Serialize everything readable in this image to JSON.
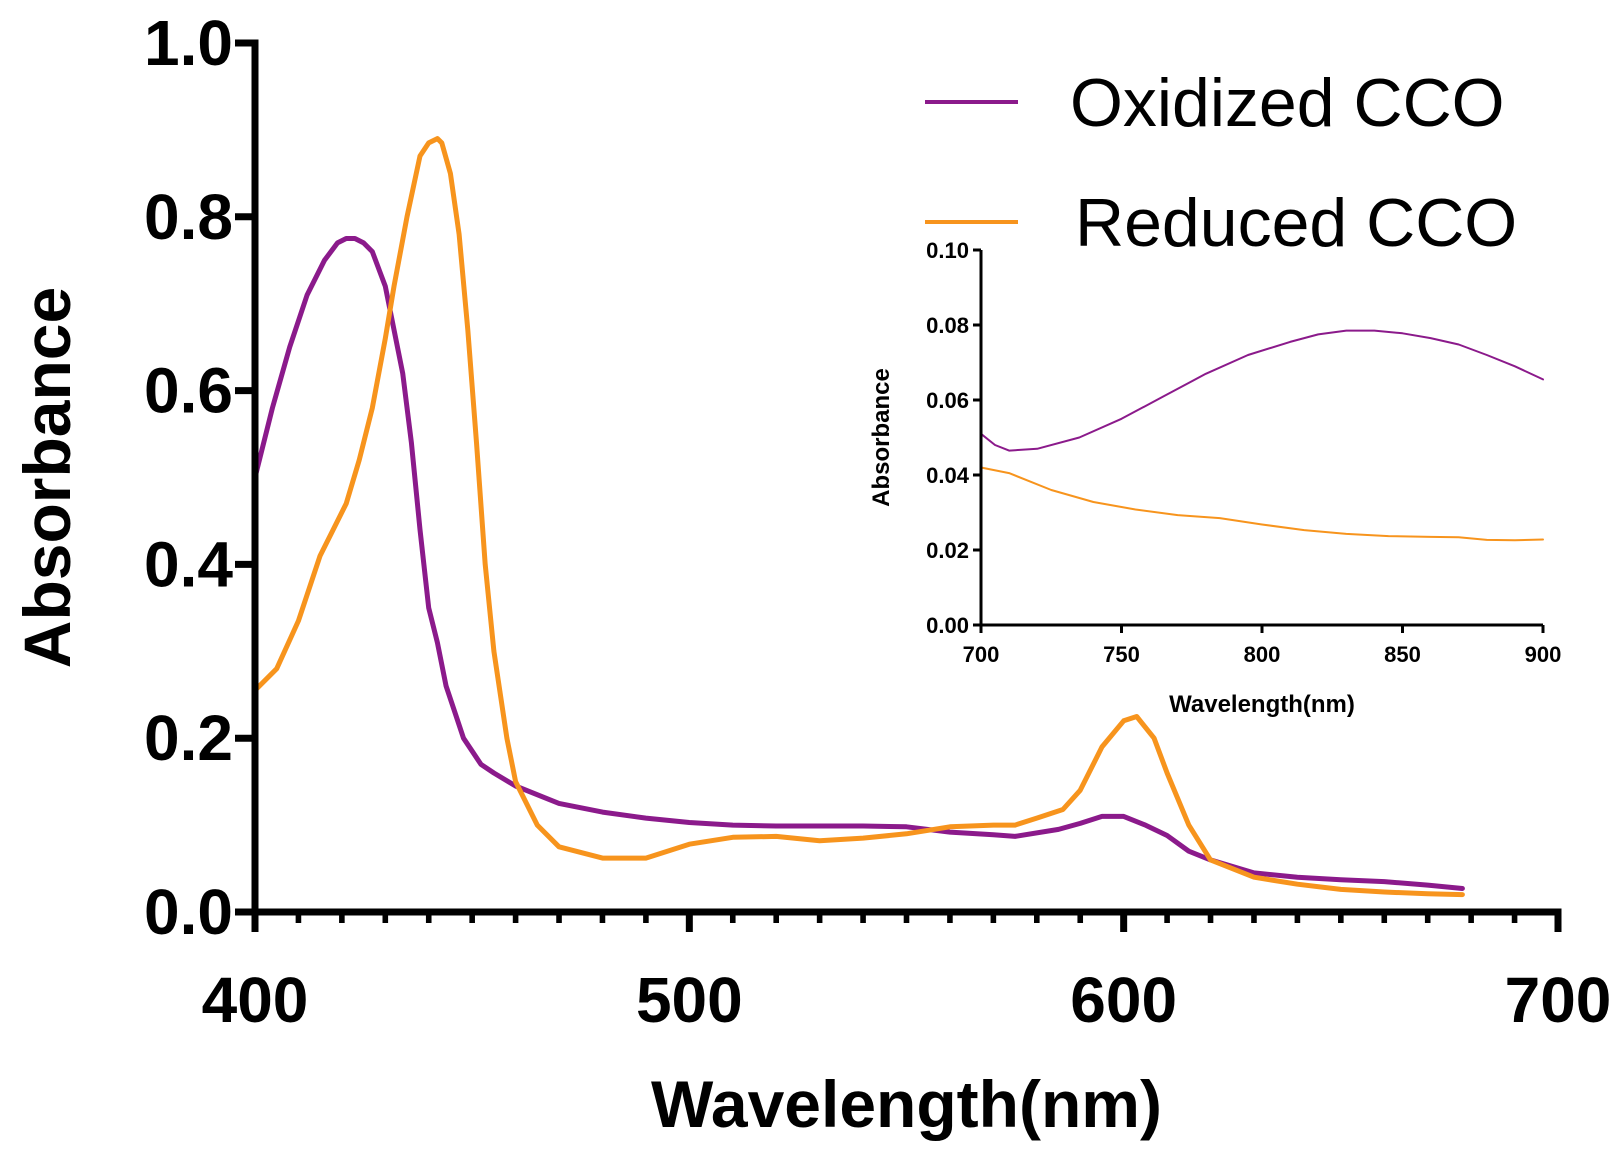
{
  "chart_data": [
    {
      "type": "line",
      "xlabel": "Wavelength(nm)",
      "ylabel": "Absorbance",
      "xlim": [
        400,
        700
      ],
      "ylim": [
        0,
        1.0
      ],
      "x_ticks": [
        400,
        500,
        600,
        700
      ],
      "x_tick_labels": [
        "400",
        "500",
        "600",
        "700"
      ],
      "y_ticks": [
        0,
        0.2,
        0.4,
        0.6,
        0.8,
        1.0
      ],
      "y_tick_labels": [
        "0.0",
        "0.2",
        "0.4",
        "0.6",
        "0.8",
        "1.0"
      ],
      "legend_position": "top-right",
      "grid": false,
      "series": [
        {
          "name": "Oxidized CCO",
          "color": "#8B1A8B",
          "x": [
            400,
            404,
            408,
            412,
            416,
            419,
            421,
            423,
            425,
            427,
            430,
            432,
            434,
            436,
            438,
            440,
            442,
            444,
            446,
            448,
            450,
            452,
            455,
            460,
            470,
            480,
            490,
            500,
            510,
            520,
            530,
            540,
            550,
            560,
            570,
            575,
            585,
            590,
            595,
            600,
            605,
            610,
            615,
            620,
            630,
            640,
            650,
            660,
            670,
            678
          ],
          "y": [
            0.5,
            0.58,
            0.65,
            0.71,
            0.75,
            0.77,
            0.775,
            0.775,
            0.77,
            0.76,
            0.72,
            0.67,
            0.62,
            0.54,
            0.44,
            0.35,
            0.31,
            0.26,
            0.23,
            0.2,
            0.185,
            0.17,
            0.16,
            0.145,
            0.125,
            0.115,
            0.108,
            0.103,
            0.1,
            0.099,
            0.099,
            0.099,
            0.098,
            0.092,
            0.089,
            0.087,
            0.095,
            0.102,
            0.11,
            0.11,
            0.1,
            0.088,
            0.07,
            0.06,
            0.045,
            0.04,
            0.037,
            0.035,
            0.031,
            0.027
          ]
        },
        {
          "name": "Reduced CCO",
          "color": "#F7941D",
          "x": [
            400,
            405,
            410,
            415,
            418,
            421,
            424,
            427,
            430,
            432,
            435,
            438,
            440,
            442,
            443,
            445,
            447,
            449,
            451,
            453,
            455,
            458,
            460,
            465,
            470,
            480,
            490,
            500,
            510,
            520,
            530,
            540,
            550,
            560,
            570,
            575,
            580,
            586,
            590,
            595,
            600,
            603,
            607,
            610,
            615,
            620,
            630,
            640,
            650,
            660,
            670,
            678
          ],
          "y": [
            0.255,
            0.28,
            0.335,
            0.41,
            0.44,
            0.47,
            0.52,
            0.58,
            0.66,
            0.72,
            0.8,
            0.87,
            0.885,
            0.89,
            0.885,
            0.85,
            0.78,
            0.67,
            0.54,
            0.4,
            0.3,
            0.2,
            0.15,
            0.1,
            0.075,
            0.062,
            0.062,
            0.078,
            0.086,
            0.087,
            0.082,
            0.085,
            0.09,
            0.098,
            0.1,
            0.1,
            0.108,
            0.118,
            0.14,
            0.19,
            0.22,
            0.225,
            0.2,
            0.16,
            0.1,
            0.06,
            0.04,
            0.032,
            0.026,
            0.023,
            0.021,
            0.02
          ]
        }
      ]
    },
    {
      "type": "line",
      "role": "inset",
      "xlabel": "Wavelength(nm)",
      "ylabel": "Absorbance",
      "xlim": [
        700,
        900
      ],
      "ylim": [
        0,
        0.1
      ],
      "x_ticks": [
        700,
        750,
        800,
        850,
        900
      ],
      "x_tick_labels": [
        "700",
        "750",
        "800",
        "850",
        "900"
      ],
      "y_ticks": [
        0,
        0.02,
        0.04,
        0.06,
        0.08,
        0.1
      ],
      "y_tick_labels": [
        "0.00",
        "0.02",
        "0.04",
        "0.06",
        "0.08",
        "0.10"
      ],
      "grid": false,
      "series": [
        {
          "name": "Oxidized CCO",
          "color": "#8B1A8B",
          "x": [
            700,
            705,
            710,
            720,
            735,
            750,
            765,
            780,
            795,
            810,
            820,
            830,
            840,
            850,
            860,
            870,
            880,
            890,
            900
          ],
          "y": [
            0.051,
            0.048,
            0.0465,
            0.047,
            0.05,
            0.055,
            0.061,
            0.067,
            0.072,
            0.0755,
            0.0775,
            0.0785,
            0.0785,
            0.0778,
            0.0765,
            0.0748,
            0.072,
            0.069,
            0.0655
          ]
        },
        {
          "name": "Reduced CCO",
          "color": "#F7941D",
          "x": [
            700,
            710,
            725,
            740,
            755,
            770,
            785,
            800,
            815,
            830,
            845,
            860,
            870,
            880,
            890,
            900
          ],
          "y": [
            0.042,
            0.0405,
            0.036,
            0.0328,
            0.0308,
            0.0293,
            0.0285,
            0.0268,
            0.0253,
            0.0243,
            0.0237,
            0.0235,
            0.0234,
            0.0227,
            0.0226,
            0.0228
          ]
        }
      ]
    }
  ]
}
